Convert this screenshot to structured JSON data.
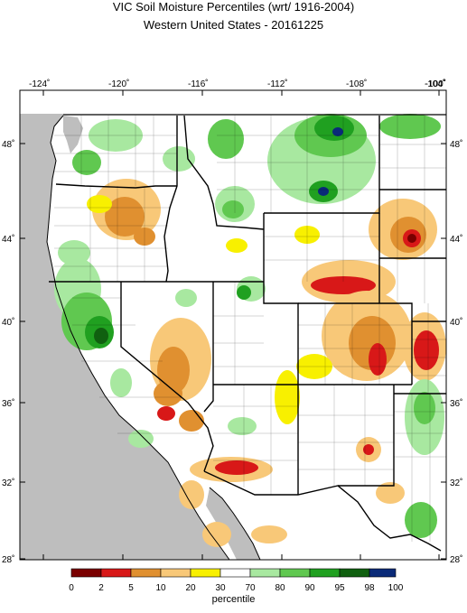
{
  "title": "VIC Soil Moisture Percentiles (wrt/ 1916-2004)",
  "subtitle": "Western United States - 20161225",
  "lon_labels": [
    "-124˚",
    "-120˚",
    "-116˚",
    "-112˚",
    "-108˚",
    "-104˚",
    "-100˚"
  ],
  "lat_labels_left": [
    "48˚",
    "44˚",
    "40˚",
    "36˚",
    "32˚",
    "28˚"
  ],
  "lat_labels_right": [
    "48˚",
    "44˚",
    "40˚",
    "36˚",
    "32˚",
    "28˚"
  ],
  "legend": {
    "title": "percentile",
    "ticks": [
      "0",
      "2",
      "5",
      "10",
      "20",
      "30",
      "70",
      "80",
      "90",
      "95",
      "98",
      "100"
    ],
    "colors": [
      "#7a0000",
      "#d81818",
      "#e09030",
      "#f8c878",
      "#f8f000",
      "#ffffff",
      "#a8e8a0",
      "#60c850",
      "#20a020",
      "#106010",
      "#0a2a78"
    ]
  },
  "map_colors": {
    "land_neutral": "#ffffff",
    "ocean": "#bebebe",
    "border": "#000000"
  }
}
